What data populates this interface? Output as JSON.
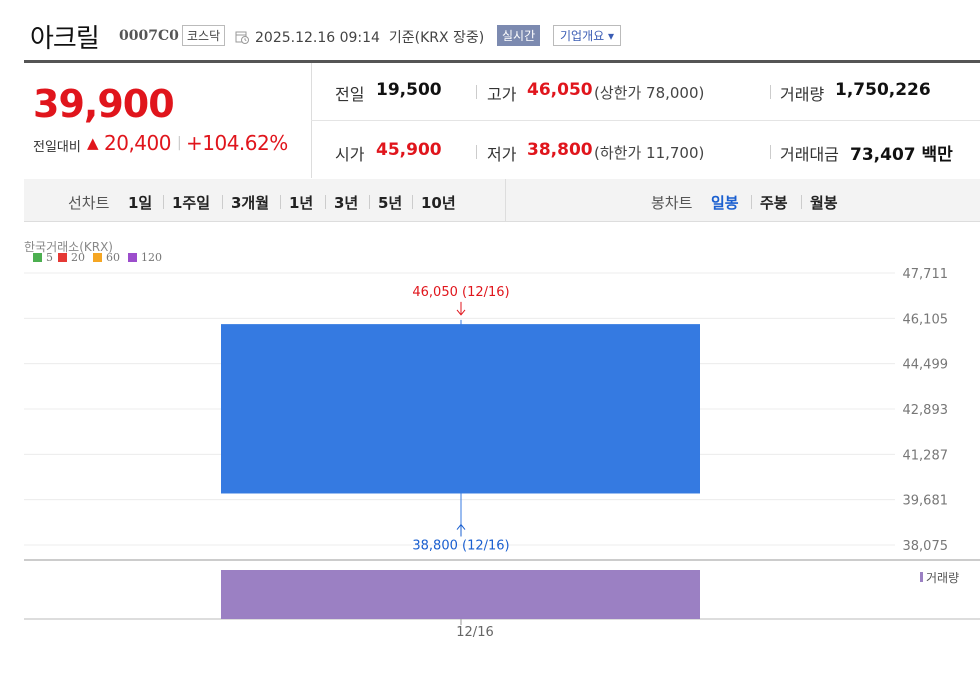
{
  "header": {
    "name": "아크릴",
    "code": "0007C0",
    "market": "코스닥",
    "datetime": "2025.12.16 09:14  기준(KRX 장중)",
    "realtime": "실시간",
    "overview": "기업개요 ▾"
  },
  "quote": {
    "price": "39,900",
    "change_label": "전일대비",
    "change_arrow": "▲",
    "change_value": "20,400",
    "change_pct": "+104.62%",
    "prev_label": "전일",
    "prev_value": "19,500",
    "high_label": "고가",
    "high_value": "46,050",
    "upper_limit": "(상한가 78,000)",
    "volume_label": "거래량",
    "volume_value": "1,750,226",
    "open_label": "시가",
    "open_value": "45,900",
    "low_label": "저가",
    "low_value": "38,800",
    "lower_limit": "(하한가 11,700)",
    "amount_label": "거래대금",
    "amount_value": "73,407 백만"
  },
  "period_bar": {
    "periods": [
      "선차트",
      "1일",
      "1주일",
      "3개월",
      "1년",
      "3년",
      "5년",
      "10년"
    ],
    "candle_label": "봉차트",
    "candles": [
      "일봉",
      "주봉",
      "월봉"
    ],
    "active": "일봉"
  },
  "chart_data": {
    "type": "candlestick",
    "source": "한국거래소(KRX)",
    "legend": [
      "5",
      "20",
      "60",
      "120"
    ],
    "legend_colors": [
      "#4caf50",
      "#e53935",
      "#f5a623",
      "#9c4dcc"
    ],
    "ylim": [
      38075,
      47711
    ],
    "y_ticks": [
      "47,711",
      "46,105",
      "44,499",
      "42,893",
      "41,287",
      "39,681",
      "38,075"
    ],
    "y_tick_values": [
      47711,
      46105,
      44499,
      42893,
      41287,
      39681,
      38075
    ],
    "x_label": "12/16",
    "candle": {
      "date": "12/16",
      "open": 45900,
      "high": 46050,
      "low": 38800,
      "close": 39900,
      "color": "#357ae1"
    },
    "high_annotation": "46,050 (12/16)",
    "low_annotation": "38,800 (12/16)",
    "volume_label": "거래량",
    "volume_color": "#9b80c3"
  }
}
